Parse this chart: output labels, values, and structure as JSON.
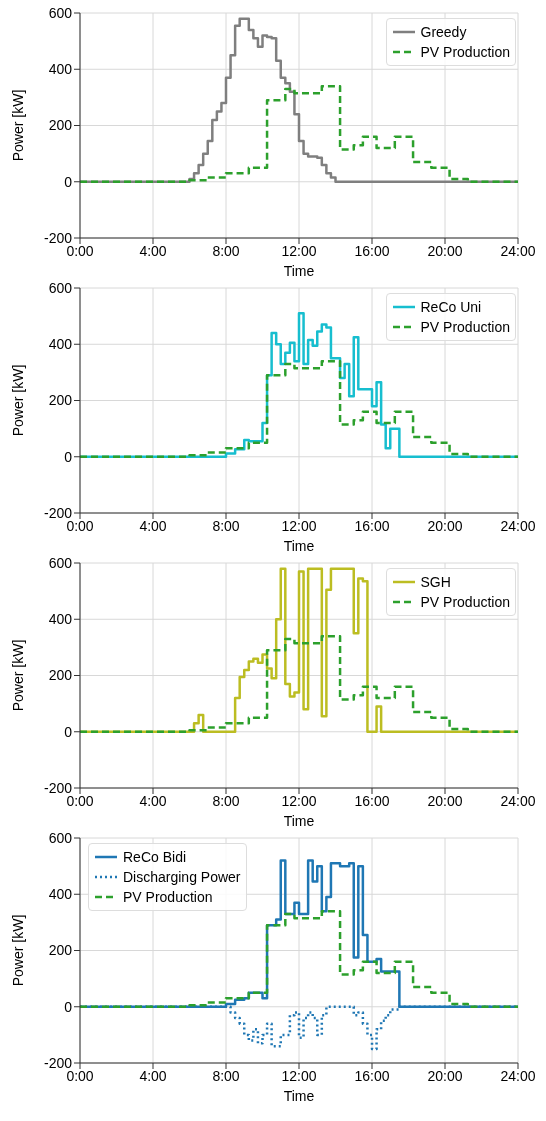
{
  "chart_data": [
    {
      "type": "step",
      "xlabel": "Time",
      "ylabel": "Power [kW]",
      "xlim": [
        0,
        24
      ],
      "ylim": [
        -200,
        600
      ],
      "xticks": [
        {
          "value": 0,
          "label": "0:00"
        },
        {
          "value": 4,
          "label": "4:00"
        },
        {
          "value": 8,
          "label": "8:00"
        },
        {
          "value": 12,
          "label": "12:00"
        },
        {
          "value": 16,
          "label": "16:00"
        },
        {
          "value": 20,
          "label": "20:00"
        },
        {
          "value": 24,
          "label": "24:00"
        }
      ],
      "yticks": [
        -200,
        0,
        200,
        400,
        600
      ],
      "grid": true,
      "legend": "top right",
      "series": [
        {
          "name": "Greedy",
          "color": "#7f7f7f",
          "line_style": "solid",
          "x": [
            0,
            6,
            6.25,
            6.5,
            6.75,
            7,
            7.25,
            7.5,
            7.75,
            8,
            8.25,
            8.5,
            8.75,
            9.25,
            9.5,
            9.75,
            10,
            10.25,
            10.5,
            10.75,
            11,
            11.25,
            11.5,
            11.75,
            12,
            12.25,
            12.5,
            13,
            13.25,
            13.5,
            13.75,
            14,
            24
          ],
          "values": [
            0,
            10,
            30,
            60,
            100,
            145,
            220,
            250,
            280,
            370,
            450,
            555,
            580,
            540,
            510,
            480,
            520,
            515,
            510,
            430,
            370,
            350,
            320,
            240,
            145,
            100,
            90,
            85,
            60,
            30,
            15,
            0,
            0
          ]
        },
        {
          "name": "PV Production",
          "color": "#2ca02c",
          "line_style": "dashed",
          "x": [
            0,
            6,
            7,
            8,
            9.25,
            10.25,
            11.25,
            11.75,
            13.25,
            14.25,
            15,
            15.5,
            16.25,
            17.25,
            18.25,
            19.25,
            20.25,
            21.25,
            24
          ],
          "values": [
            0,
            5,
            15,
            30,
            50,
            290,
            330,
            315,
            340,
            115,
            130,
            160,
            120,
            160,
            70,
            50,
            10,
            0,
            0
          ]
        }
      ]
    },
    {
      "type": "step",
      "xlabel": "Time",
      "ylabel": "Power [kW]",
      "xlim": [
        0,
        24
      ],
      "ylim": [
        -200,
        600
      ],
      "xticks": [
        {
          "value": 0,
          "label": "0:00"
        },
        {
          "value": 4,
          "label": "4:00"
        },
        {
          "value": 8,
          "label": "8:00"
        },
        {
          "value": 12,
          "label": "12:00"
        },
        {
          "value": 16,
          "label": "16:00"
        },
        {
          "value": 20,
          "label": "20:00"
        },
        {
          "value": 24,
          "label": "24:00"
        }
      ],
      "yticks": [
        -200,
        0,
        200,
        400,
        600
      ],
      "grid": true,
      "legend": "top right",
      "series": [
        {
          "name": "ReCo Uni",
          "color": "#17becf",
          "line_style": "solid",
          "x": [
            0,
            8,
            8.5,
            9,
            9.25,
            10,
            10.25,
            10.5,
            10.75,
            11,
            11.25,
            11.5,
            11.75,
            12,
            12.25,
            12.5,
            12.75,
            13,
            13.25,
            13.5,
            13.75,
            14.25,
            14.5,
            14.75,
            15,
            15.25,
            15.5,
            16,
            16.25,
            16.5,
            16.75,
            17,
            17.5,
            24
          ],
          "values": [
            0,
            12,
            27,
            60,
            55,
            120,
            290,
            440,
            400,
            330,
            370,
            405,
            340,
            510,
            330,
            415,
            395,
            445,
            470,
            460,
            350,
            280,
            330,
            215,
            425,
            240,
            240,
            180,
            265,
            115,
            30,
            100,
            0,
            0
          ]
        },
        {
          "name": "PV Production",
          "color": "#2ca02c",
          "line_style": "dashed",
          "x": [
            0,
            6,
            7,
            8,
            9.25,
            10.25,
            11.25,
            11.75,
            13.25,
            14.25,
            15,
            15.5,
            16.25,
            17.25,
            18.25,
            19.25,
            20.25,
            21.25,
            24
          ],
          "values": [
            0,
            5,
            15,
            30,
            50,
            290,
            330,
            315,
            340,
            115,
            130,
            160,
            120,
            160,
            70,
            50,
            10,
            0,
            0
          ]
        }
      ]
    },
    {
      "type": "step",
      "xlabel": "Time",
      "ylabel": "Power [kW]",
      "xlim": [
        0,
        24
      ],
      "ylim": [
        -200,
        600
      ],
      "xticks": [
        {
          "value": 0,
          "label": "0:00"
        },
        {
          "value": 4,
          "label": "4:00"
        },
        {
          "value": 8,
          "label": "8:00"
        },
        {
          "value": 12,
          "label": "12:00"
        },
        {
          "value": 16,
          "label": "16:00"
        },
        {
          "value": 20,
          "label": "20:00"
        },
        {
          "value": 24,
          "label": "24:00"
        }
      ],
      "yticks": [
        -200,
        0,
        200,
        400,
        600
      ],
      "grid": true,
      "legend": "top right",
      "series": [
        {
          "name": "SGH",
          "color": "#bcbd22",
          "line_style": "solid",
          "x": [
            0,
            6.25,
            6.5,
            6.75,
            8.5,
            8.75,
            9,
            9.25,
            9.5,
            9.75,
            10,
            10.25,
            10.5,
            10.75,
            11,
            11.25,
            11.5,
            11.75,
            12,
            12.25,
            12.5,
            13.25,
            13.5,
            13.75,
            15,
            15.25,
            15.5,
            15.75,
            16.25,
            16.5,
            24
          ],
          "values": [
            0,
            30,
            60,
            0,
            120,
            195,
            220,
            250,
            260,
            245,
            275,
            225,
            190,
            400,
            580,
            170,
            125,
            140,
            570,
            80,
            580,
            55,
            505,
            580,
            350,
            545,
            535,
            0,
            90,
            0,
            0
          ]
        },
        {
          "name": "PV Production",
          "color": "#2ca02c",
          "line_style": "dashed",
          "x": [
            0,
            6,
            7,
            8,
            9.25,
            10.25,
            11.25,
            11.75,
            13.25,
            14.25,
            15,
            15.5,
            16.25,
            17.25,
            18.25,
            19.25,
            20.25,
            21.25,
            24
          ],
          "values": [
            0,
            5,
            15,
            30,
            50,
            290,
            330,
            315,
            340,
            115,
            130,
            160,
            120,
            160,
            70,
            50,
            10,
            0,
            0
          ]
        }
      ]
    },
    {
      "type": "step",
      "xlabel": "Time",
      "ylabel": "Power [kW]",
      "xlim": [
        0,
        24
      ],
      "ylim": [
        -200,
        600
      ],
      "xticks": [
        {
          "value": 0,
          "label": "0:00"
        },
        {
          "value": 4,
          "label": "4:00"
        },
        {
          "value": 8,
          "label": "8:00"
        },
        {
          "value": 12,
          "label": "12:00"
        },
        {
          "value": 16,
          "label": "16:00"
        },
        {
          "value": 20,
          "label": "20:00"
        },
        {
          "value": 24,
          "label": "24:00"
        }
      ],
      "yticks": [
        -200,
        0,
        200,
        400,
        600
      ],
      "grid": true,
      "legend": "top left",
      "series": [
        {
          "name": "ReCo Bidi",
          "color": "#1f77b4",
          "line_style": "solid",
          "x": [
            0,
            8,
            8.5,
            9,
            9.25,
            10,
            10.25,
            10.75,
            11,
            11.25,
            11.75,
            12,
            12.5,
            12.75,
            13,
            13.25,
            13.5,
            13.75,
            14.25,
            14.75,
            15,
            15.25,
            15.5,
            15.75,
            16.25,
            16.5,
            17.5,
            24
          ],
          "values": [
            0,
            10,
            25,
            30,
            50,
            30,
            290,
            310,
            520,
            330,
            370,
            330,
            520,
            445,
            500,
            340,
            390,
            510,
            500,
            510,
            175,
            500,
            255,
            160,
            170,
            125,
            0,
            0
          ]
        },
        {
          "name": "Discharging Power",
          "color": "#1f77b4",
          "line_style": "dotted",
          "x": [
            0,
            8.25,
            8.5,
            8.75,
            9,
            9.25,
            9.5,
            9.75,
            10,
            10.25,
            10.5,
            11,
            11.5,
            11.75,
            12,
            12.25,
            12.5,
            12.75,
            13,
            13.25,
            13.5,
            14,
            15,
            15.25,
            15.5,
            15.75,
            16,
            16.25,
            16.5,
            16.75,
            17,
            17.5,
            24
          ],
          "values": [
            0,
            -20,
            -40,
            -60,
            -100,
            -120,
            -80,
            -130,
            -100,
            -60,
            -140,
            -100,
            -30,
            -20,
            -110,
            -40,
            -20,
            -40,
            -100,
            -30,
            0,
            0,
            -30,
            -20,
            -60,
            -100,
            -150,
            -80,
            -50,
            -30,
            -10,
            0,
            0
          ]
        },
        {
          "name": "PV Production",
          "color": "#2ca02c",
          "line_style": "dashed",
          "x": [
            0,
            6,
            7,
            8,
            9.25,
            10.25,
            11.25,
            11.75,
            13.25,
            14.25,
            15,
            15.5,
            16.25,
            17.25,
            18.25,
            19.25,
            20.25,
            21.25,
            24
          ],
          "values": [
            0,
            5,
            15,
            30,
            50,
            290,
            330,
            315,
            340,
            115,
            130,
            160,
            120,
            160,
            70,
            50,
            10,
            0,
            0
          ]
        }
      ]
    }
  ]
}
